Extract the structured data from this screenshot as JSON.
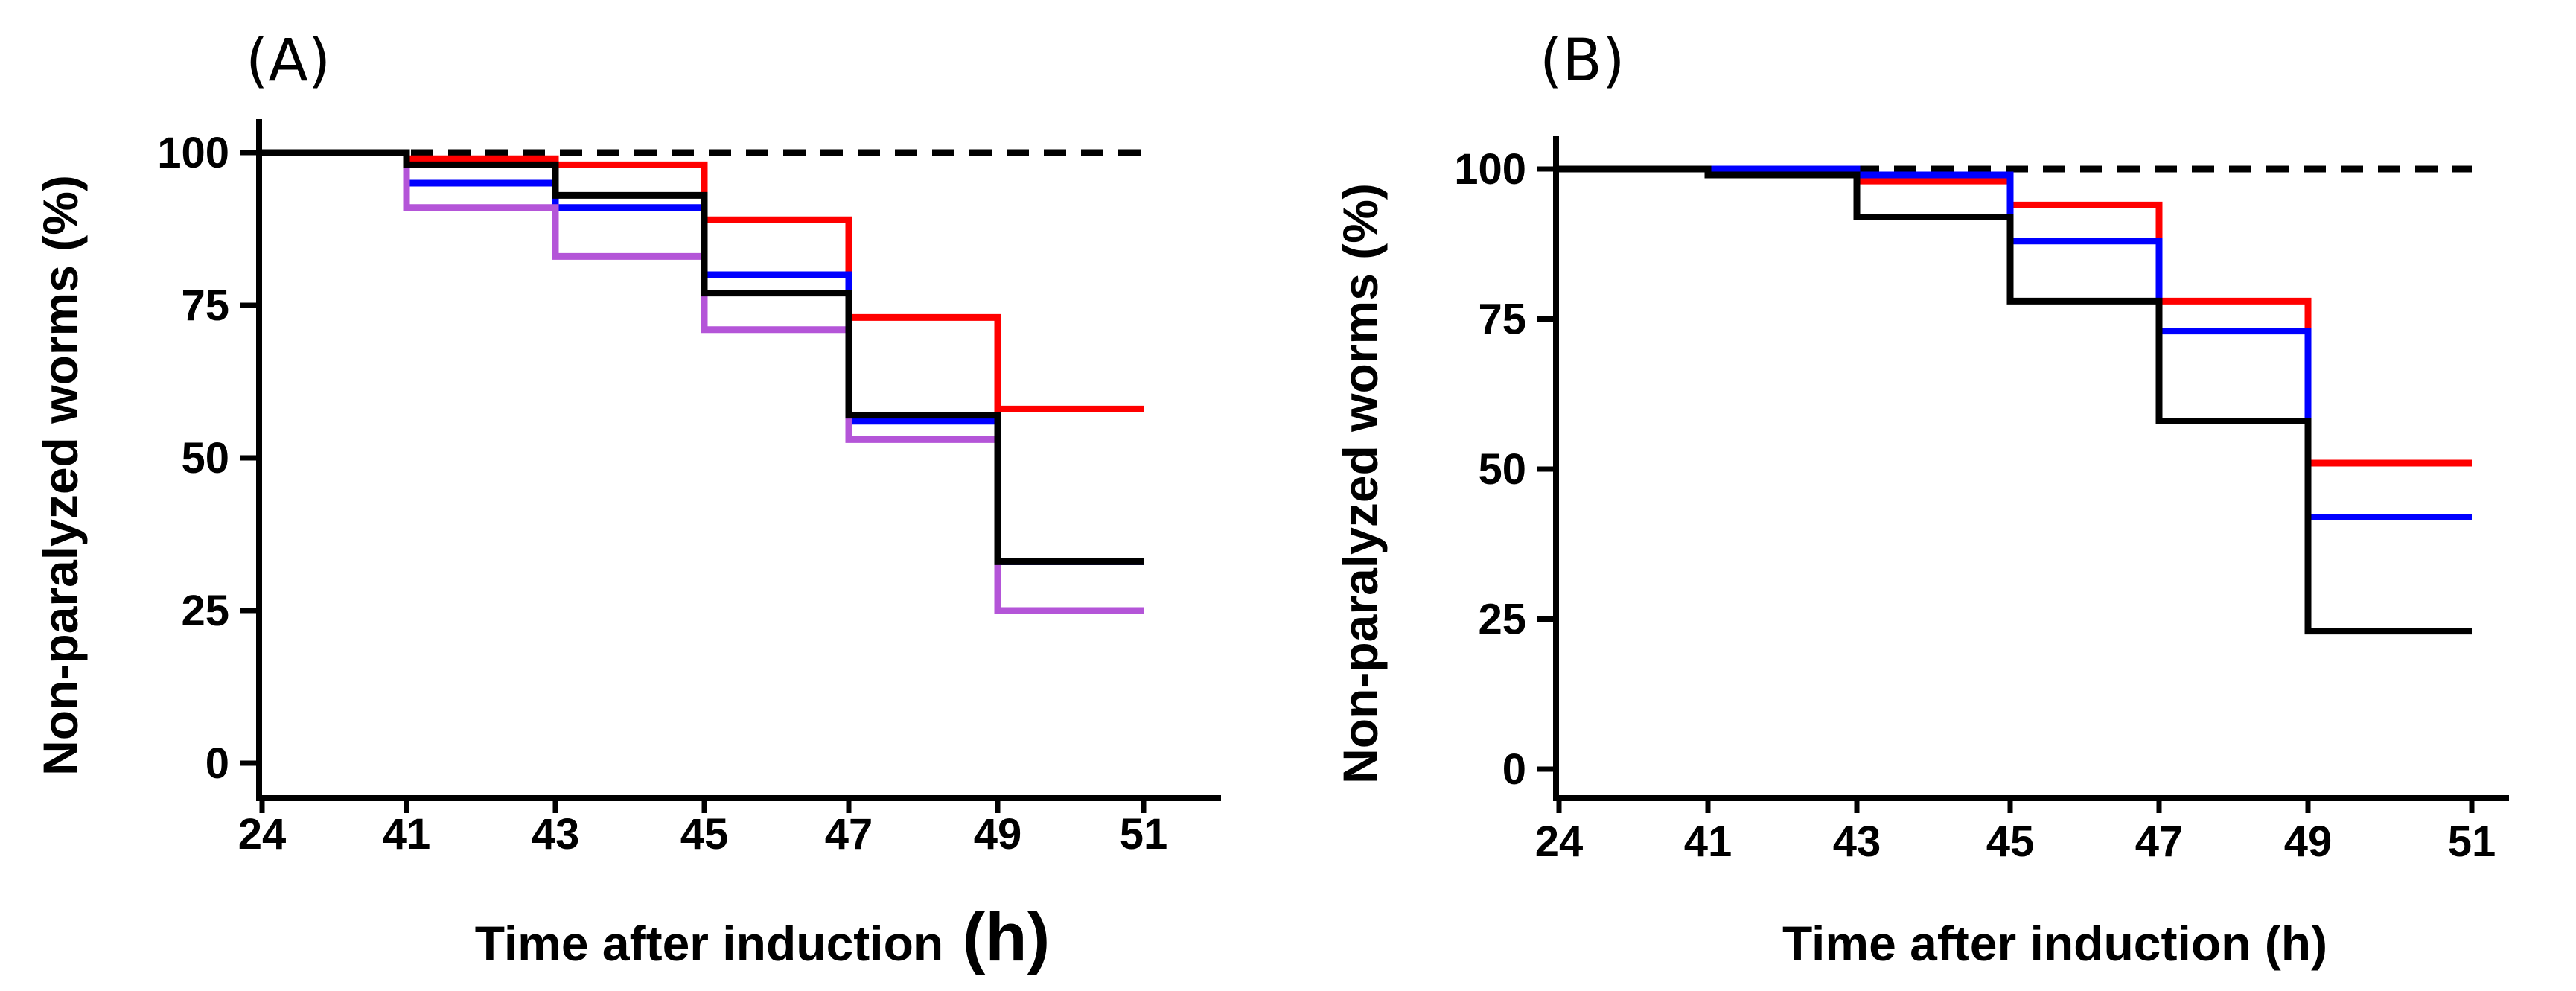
{
  "chart_data": [
    {
      "panel_label": "(A)",
      "type": "line",
      "subtype": "step",
      "x_categories": [
        "24",
        "41",
        "43",
        "45",
        "47",
        "49",
        "51"
      ],
      "xlabel": "Time after induction",
      "xlabel_unit": "(h)",
      "ylabel": "Non-paralyzed worms (%)",
      "ylim": [
        0,
        100
      ],
      "yticks": [
        "0",
        "25",
        "50",
        "75",
        "100"
      ],
      "grid": false,
      "legend": "none",
      "series": [
        {
          "color": "#000000",
          "dashed": true,
          "values": [
            100,
            100,
            100,
            100,
            100,
            100,
            100
          ]
        },
        {
          "color": "#ff0000",
          "dashed": false,
          "values": [
            100,
            99,
            98,
            89,
            73,
            58,
            58
          ]
        },
        {
          "color": "#0000ff",
          "dashed": false,
          "values": [
            100,
            95,
            91,
            80,
            56,
            33,
            33
          ]
        },
        {
          "color": "#b455d8",
          "dashed": false,
          "values": [
            100,
            91,
            83,
            71,
            53,
            25,
            25
          ]
        },
        {
          "color": "#000000",
          "dashed": false,
          "values": [
            100,
            98,
            93,
            77,
            57,
            33,
            33
          ]
        }
      ]
    },
    {
      "panel_label": "(B)",
      "type": "line",
      "subtype": "step",
      "x_categories": [
        "24",
        "41",
        "43",
        "45",
        "47",
        "49",
        "51"
      ],
      "xlabel": "Time after induction (h)",
      "xlabel_unit": "",
      "ylabel": "Non-paralyzed worms (%)",
      "ylim": [
        0,
        100
      ],
      "yticks": [
        "0",
        "25",
        "50",
        "75",
        "100"
      ],
      "grid": false,
      "legend": "none",
      "series": [
        {
          "color": "#000000",
          "dashed": true,
          "values": [
            100,
            100,
            100,
            100,
            100,
            100,
            100
          ]
        },
        {
          "color": "#ff0000",
          "dashed": false,
          "values": [
            100,
            100,
            98,
            94,
            78,
            51,
            51
          ]
        },
        {
          "color": "#0000ff",
          "dashed": false,
          "values": [
            100,
            100,
            99,
            88,
            73,
            42,
            42
          ]
        },
        {
          "color": "#000000",
          "dashed": false,
          "values": [
            100,
            99,
            92,
            78,
            58,
            23,
            23
          ]
        }
      ]
    }
  ]
}
